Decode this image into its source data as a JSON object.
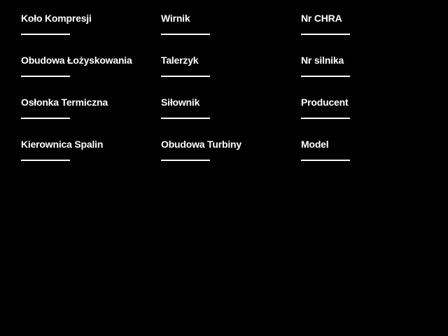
{
  "theme": {
    "background": "#000000",
    "label_color": "#ffffff",
    "line_color": "#ffffff"
  },
  "form": {
    "columns": [
      {
        "fields": [
          {
            "label": "Koło Kompresji",
            "value": ""
          },
          {
            "label": "Obudowa Łożyskowania",
            "value": ""
          },
          {
            "label": "Osłonka Termiczna",
            "value": ""
          },
          {
            "label": "Kierownica Spalin",
            "value": ""
          }
        ]
      },
      {
        "fields": [
          {
            "label": "Wirnik",
            "value": ""
          },
          {
            "label": "Talerzyk",
            "value": ""
          },
          {
            "label": "Siłownik",
            "value": ""
          },
          {
            "label": "Obudowa Turbiny",
            "value": ""
          }
        ]
      },
      {
        "fields": [
          {
            "label": "Nr CHRA",
            "value": ""
          },
          {
            "label": "Nr silnika",
            "value": ""
          },
          {
            "label": "Producent",
            "value": ""
          },
          {
            "label": "Model",
            "value": ""
          }
        ]
      }
    ]
  }
}
